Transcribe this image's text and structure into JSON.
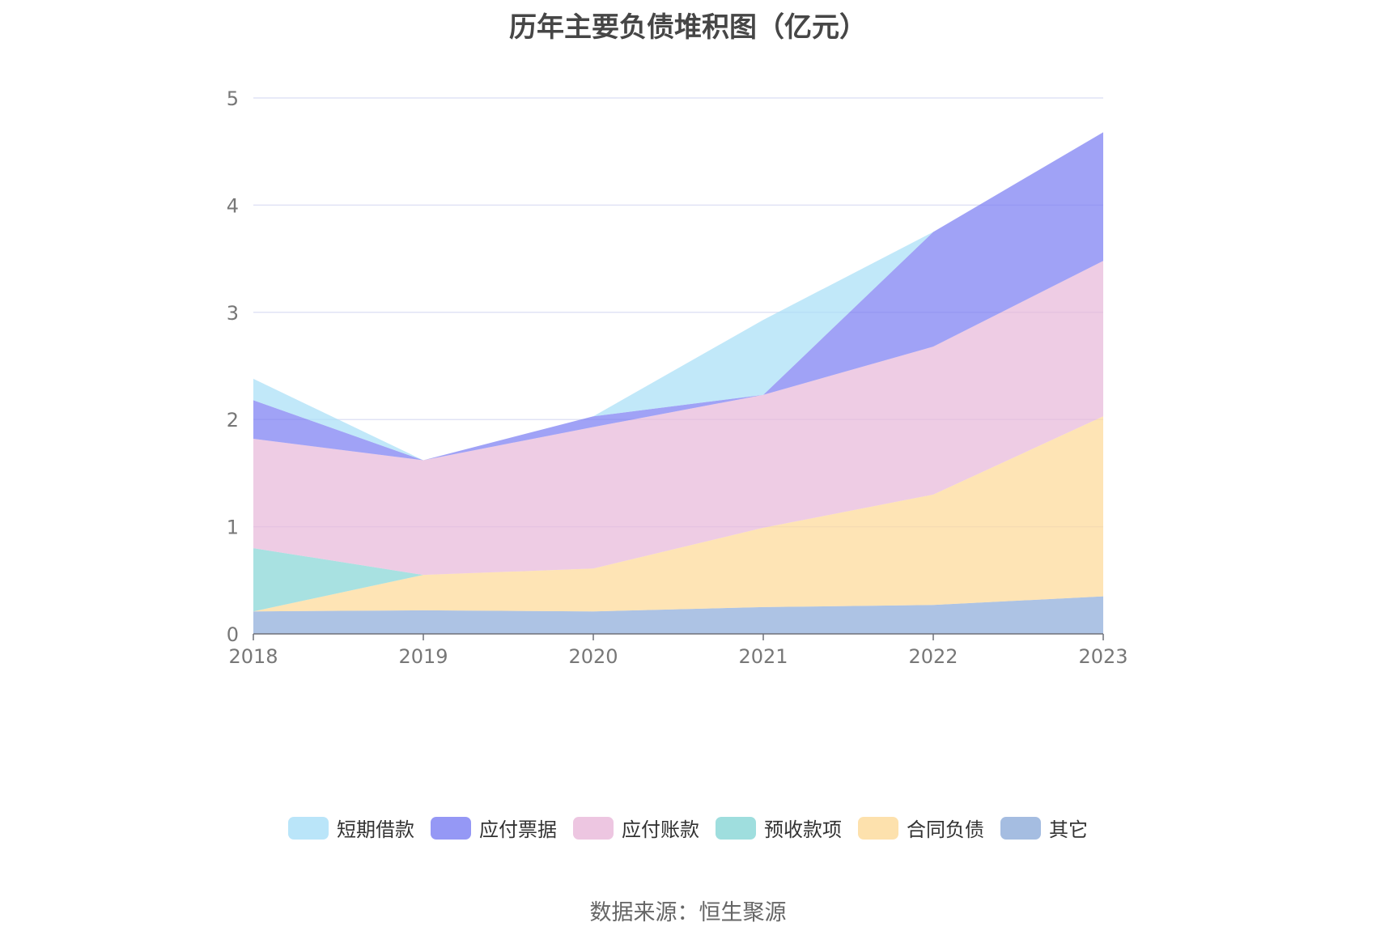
{
  "title": "历年主要负债堆积图（亿元）",
  "source": "数据来源：恒生聚源",
  "chart_data": {
    "type": "area",
    "stacked": true,
    "categories": [
      "2018",
      "2019",
      "2020",
      "2021",
      "2022",
      "2023"
    ],
    "ylim": [
      0,
      5
    ],
    "yticks": [
      "0",
      "1",
      "2",
      "3",
      "4",
      "5"
    ],
    "grid": true,
    "legend_position": "bottom",
    "series": [
      {
        "name": "其它",
        "color": "#8eacd9",
        "values": [
          0.21,
          0.22,
          0.21,
          0.25,
          0.27,
          0.35
        ]
      },
      {
        "name": "合同负债",
        "color": "#fdd998",
        "values": [
          0,
          0.33,
          0.4,
          0.74,
          1.03,
          1.68
        ]
      },
      {
        "name": "预收款项",
        "color": "#87d6d6",
        "values": [
          0.59,
          0,
          0,
          0,
          0,
          0
        ]
      },
      {
        "name": "应付账款",
        "color": "#e8b8d9",
        "values": [
          1.02,
          1.07,
          1.32,
          1.24,
          1.38,
          1.45
        ]
      },
      {
        "name": "应付票据",
        "color": "#7b7ef3",
        "values": [
          0.36,
          0,
          0.1,
          0,
          1.07,
          1.2
        ]
      },
      {
        "name": "短期借款",
        "color": "#a9dff7",
        "values": [
          0.2,
          0,
          0,
          0.7,
          0,
          0
        ]
      }
    ],
    "legend_order": [
      "短期借款",
      "应付票据",
      "应付账款",
      "预收款项",
      "合同负债",
      "其它"
    ]
  }
}
